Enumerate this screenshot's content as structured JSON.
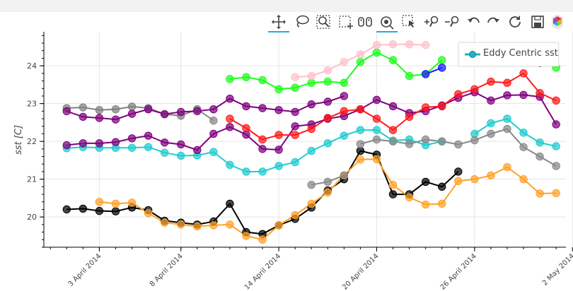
{
  "toolbar": {
    "tools": [
      {
        "name": "pan-tool-icon",
        "active": true
      },
      {
        "name": "lasso-select-tool-icon",
        "active": false
      },
      {
        "name": "zoom-in-box-tool-icon",
        "active": false
      },
      {
        "name": "box-select-tool-icon",
        "active": false
      },
      {
        "name": "wheel-zoom-tool-icon",
        "active": false
      },
      {
        "name": "hover-tool-icon",
        "active": true
      },
      {
        "name": "tap-select-tool-icon",
        "active": false
      },
      {
        "name": "zoom-in-tool-icon",
        "active": false
      },
      {
        "name": "zoom-out-tool-icon",
        "active": false
      },
      {
        "name": "undo-tool-icon",
        "active": false
      },
      {
        "name": "redo-tool-icon",
        "active": false
      },
      {
        "name": "reset-tool-icon",
        "active": false
      },
      {
        "name": "save-tool-icon",
        "active": false
      },
      {
        "name": "bokeh-logo-icon",
        "active": false
      }
    ]
  },
  "legend": {
    "label": "Eddy Centric sst",
    "color": "#1fb4c4"
  },
  "chart_data": {
    "type": "line",
    "ylabel": "sst [C]",
    "xlabel": "",
    "ylim": [
      19.2,
      24.9
    ],
    "xlim_days": [
      -1.4,
      30.6
    ],
    "yticks": [
      20,
      21,
      22,
      23,
      24
    ],
    "yticks_labels": [
      "20",
      "21",
      "22",
      "23",
      "24"
    ],
    "xticks": [
      {
        "day": 2,
        "label": "3 April 2014"
      },
      {
        "day": 7,
        "label": "8 April 2014"
      },
      {
        "day": 13,
        "label": "14 April 2014"
      },
      {
        "day": 19,
        "label": "20 April 2014"
      },
      {
        "day": 25,
        "label": "26 April 2014"
      },
      {
        "day": 31,
        "label": "2 May 2014"
      }
    ],
    "x_date_start": "2014-04-01",
    "series": [
      {
        "color": "#000000",
        "x": [
          0,
          1,
          2,
          3,
          4,
          5,
          6,
          7,
          8,
          9,
          10,
          11,
          12,
          13,
          14,
          15,
          16,
          17,
          18,
          19,
          20,
          21,
          22,
          23,
          24
        ],
        "y": [
          20.2,
          20.22,
          20.16,
          20.15,
          20.25,
          20.18,
          19.9,
          19.85,
          19.8,
          19.88,
          20.35,
          19.6,
          19.55,
          19.78,
          19.95,
          20.25,
          20.7,
          21.0,
          21.75,
          21.65,
          20.6,
          20.6,
          20.93,
          20.8,
          21.2
        ]
      },
      {
        "color": "#ffa22a",
        "x": [
          2,
          3,
          4,
          5,
          6,
          7,
          8,
          9,
          10,
          11,
          12,
          13,
          14,
          15,
          16,
          17,
          18,
          19,
          20,
          21,
          22,
          23,
          24,
          25,
          26,
          27,
          28,
          29,
          30
        ],
        "y": [
          20.4,
          20.35,
          20.38,
          20.1,
          19.85,
          19.8,
          19.75,
          19.78,
          19.8,
          19.5,
          19.4,
          19.78,
          20.05,
          20.35,
          20.65,
          21.1,
          21.52,
          21.53,
          20.85,
          20.52,
          20.33,
          20.35,
          20.95,
          21.0,
          21.1,
          21.32,
          21.0,
          20.62,
          20.63
        ]
      },
      {
        "color": "#888888",
        "x": [
          15,
          16,
          17
        ],
        "y": [
          20.85,
          20.93,
          21.1
        ]
      },
      {
        "color": "#1fcccf",
        "x": [
          0,
          1,
          2,
          3,
          4,
          5,
          6,
          7,
          8,
          9,
          10,
          11,
          12,
          13,
          14,
          15,
          16,
          17,
          18,
          19,
          20,
          21,
          22,
          23
        ],
        "y": [
          21.82,
          21.85,
          21.83,
          21.83,
          21.83,
          21.85,
          21.7,
          21.62,
          21.63,
          21.72,
          21.38,
          21.2,
          21.2,
          21.35,
          21.45,
          21.75,
          21.95,
          22.15,
          22.3,
          22.3,
          22.02,
          22.05,
          21.9,
          22.0
        ]
      },
      {
        "color": "#1fcccf",
        "x": [
          25,
          26,
          27,
          28,
          29,
          30
        ],
        "y": [
          22.2,
          22.48,
          22.6,
          22.23,
          21.97,
          21.87
        ]
      },
      {
        "color": "#888888",
        "x": [
          18,
          19,
          20,
          21,
          22,
          23,
          24,
          25,
          26,
          27,
          28,
          29,
          30
        ],
        "y": [
          21.93,
          22.05,
          22.0,
          21.93,
          22.05,
          22.0,
          21.92,
          22.03,
          22.2,
          22.33,
          21.85,
          21.6,
          21.35
        ]
      },
      {
        "color": "#800080",
        "x": [
          0,
          1,
          2,
          3,
          4,
          5,
          6,
          7,
          8,
          9,
          10,
          11,
          12,
          13,
          14,
          15,
          16,
          17,
          18,
          19,
          20,
          21,
          22,
          23,
          24,
          25,
          26,
          27,
          28,
          29,
          30
        ],
        "y": [
          21.9,
          21.95,
          21.95,
          21.98,
          22.08,
          22.15,
          21.97,
          21.92,
          21.77,
          22.2,
          22.38,
          22.18,
          21.8,
          21.78,
          22.4,
          22.45,
          22.6,
          22.67,
          22.85,
          23.1,
          22.93,
          22.75,
          22.8,
          22.95,
          23.15,
          23.3,
          23.08,
          23.22,
          23.23,
          23.18,
          22.45
        ]
      },
      {
        "color": "#ff1a1a",
        "x": [
          10,
          11,
          12,
          13,
          14,
          15,
          16,
          17,
          18,
          19,
          20,
          21,
          22,
          23,
          24,
          25,
          26,
          27,
          28,
          29,
          30
        ],
        "y": [
          22.6,
          22.35,
          22.05,
          22.17,
          22.17,
          22.33,
          22.62,
          22.8,
          22.85,
          22.6,
          22.3,
          22.65,
          22.9,
          22.93,
          23.25,
          23.38,
          23.58,
          23.55,
          23.8,
          23.28,
          23.08
        ]
      },
      {
        "color": "#808080",
        "x": [
          0,
          1,
          2,
          3,
          4,
          5,
          6,
          7,
          8
        ],
        "y": [
          22.88,
          22.9,
          22.83,
          22.85,
          22.92,
          22.88,
          22.72,
          22.68,
          22.85
        ]
      },
      {
        "color": "#888888",
        "x": [
          8,
          9
        ],
        "y": [
          22.85,
          22.55
        ]
      },
      {
        "color": "#800080",
        "x": [
          0,
          1,
          2,
          3,
          4,
          5,
          6,
          7,
          8,
          9,
          10,
          11,
          12,
          13,
          14,
          15,
          16,
          17
        ],
        "y": [
          22.8,
          22.65,
          22.62,
          22.58,
          22.73,
          22.85,
          22.72,
          22.78,
          22.8,
          22.85,
          23.13,
          22.93,
          22.88,
          22.83,
          22.78,
          22.98,
          23.05,
          23.2
        ]
      },
      {
        "color": "#1aff1a",
        "x": [
          10,
          11,
          12,
          13,
          14,
          15,
          16,
          17,
          18,
          19,
          20,
          21,
          22,
          23
        ],
        "y": [
          23.65,
          23.7,
          23.62,
          23.38,
          23.42,
          23.55,
          23.58,
          23.55,
          24.1,
          24.35,
          24.15,
          23.73,
          23.78,
          24.15
        ]
      },
      {
        "color": "#ffc0cb",
        "x": [
          14,
          15,
          16,
          17,
          18,
          19,
          20,
          21,
          22
        ],
        "y": [
          23.7,
          23.73,
          23.88,
          24.1,
          24.3,
          24.55,
          24.57,
          24.57,
          24.55
        ]
      },
      {
        "color": "#1a1aff",
        "x": [
          22,
          23
        ],
        "y": [
          23.78,
          23.95
        ]
      },
      {
        "color": "#1aff1a",
        "x": [
          30
        ],
        "y": [
          23.95
        ]
      },
      {
        "color": "#222222",
        "x": [
          29
        ],
        "y": [
          24.08
        ]
      }
    ]
  }
}
